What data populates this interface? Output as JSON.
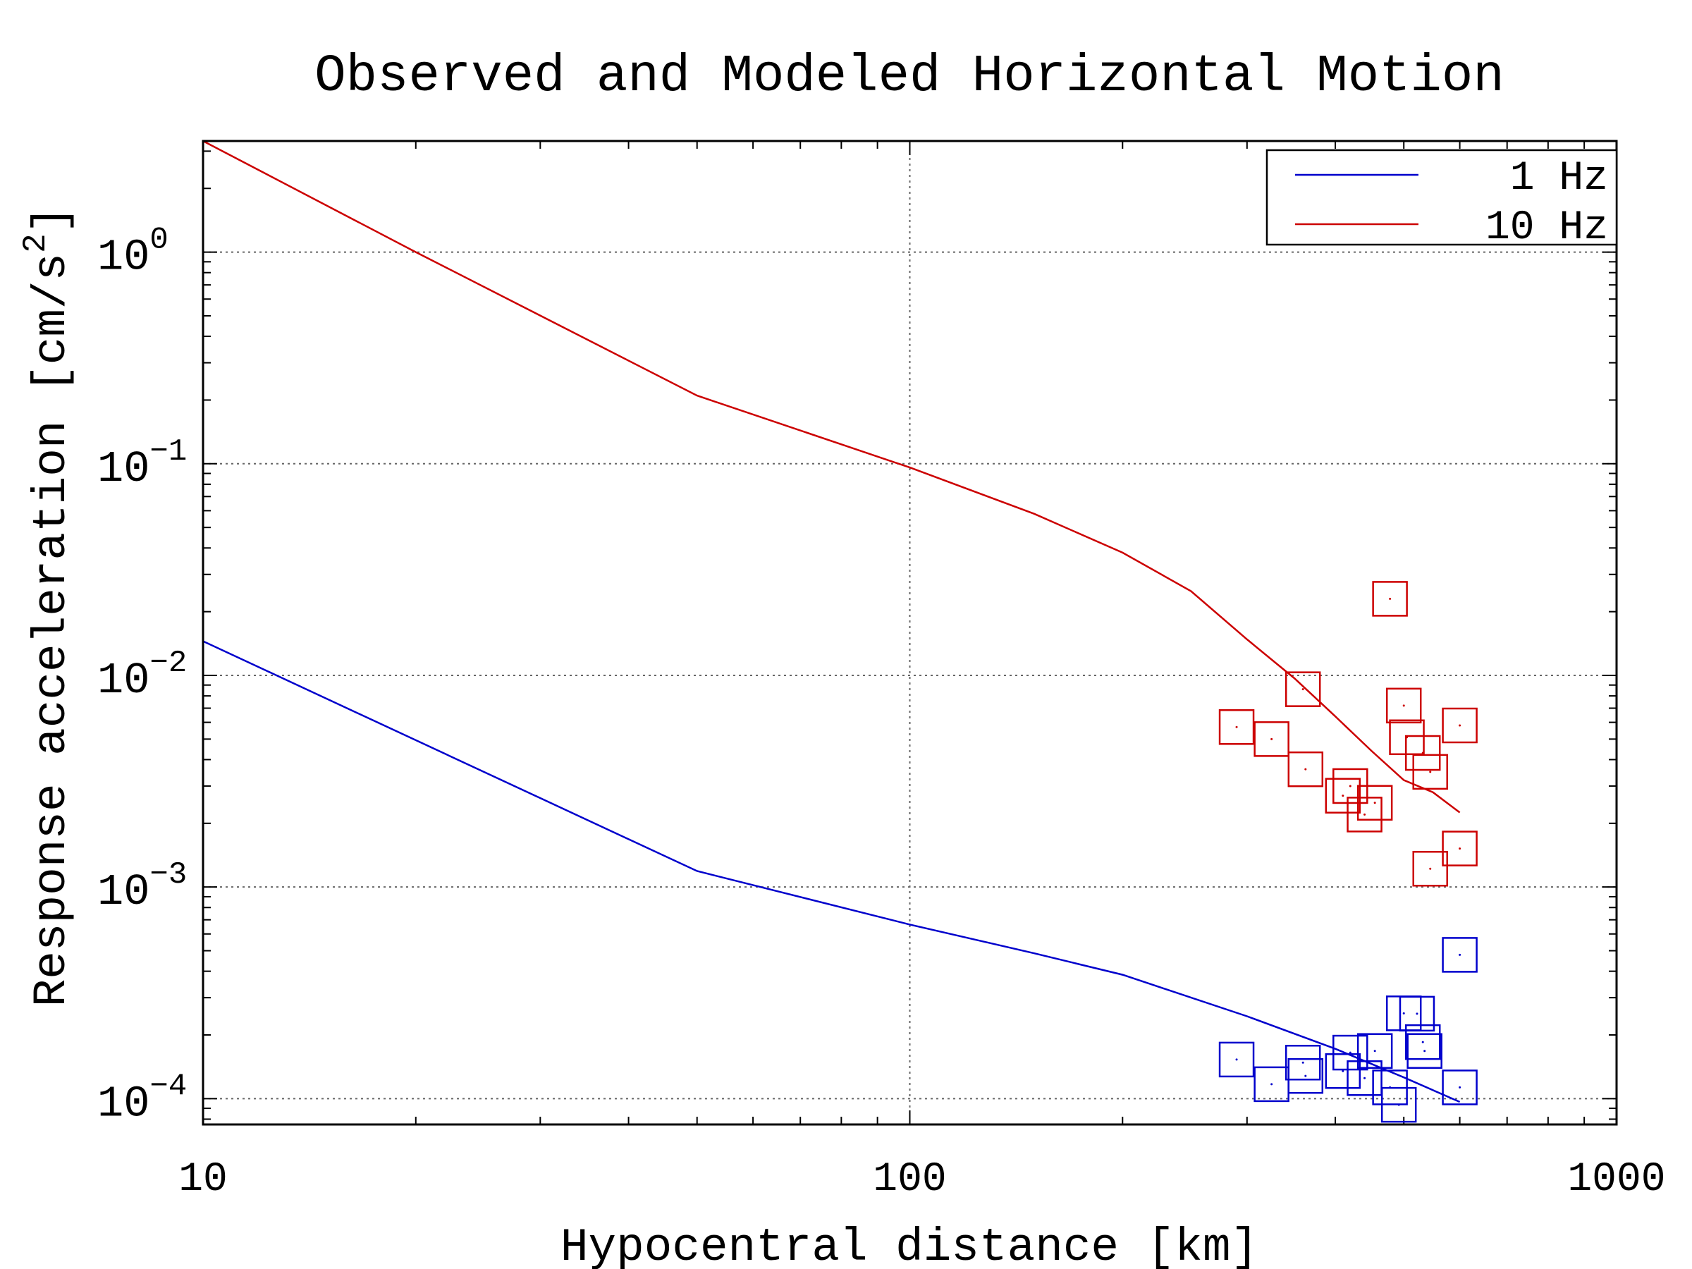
{
  "chart_data": {
    "type": "line",
    "title": "Observed and Modeled Horizontal Motion",
    "xlabel": "Hypocentral distance [km]",
    "ylabel": {
      "text": "Response acceleration [cm/s",
      "superscript": "2",
      "suffix": "]"
    },
    "x_scale": "log",
    "y_scale": "log",
    "xlim": [
      10,
      1000
    ],
    "ylim": [
      7.55e-05,
      3.35
    ],
    "grid": true,
    "legend_position": "top-right",
    "x_ticks": [
      {
        "value": 10,
        "label": "10"
      },
      {
        "value": 100,
        "label": "100"
      },
      {
        "value": 1000,
        "label": "1000"
      }
    ],
    "y_ticks": [
      {
        "value": 0.0001,
        "base": "10",
        "exp": "−4"
      },
      {
        "value": 0.001,
        "base": "10",
        "exp": "−3"
      },
      {
        "value": 0.01,
        "base": "10",
        "exp": "−2"
      },
      {
        "value": 0.1,
        "base": "10",
        "exp": "−1"
      },
      {
        "value": 1,
        "base": "10",
        "exp": "0"
      }
    ],
    "series": [
      {
        "name": "1 Hz",
        "color": "#0000cc",
        "kind": "line",
        "x": [
          10,
          50,
          100,
          150,
          200,
          300,
          400,
          500,
          600
        ],
        "y": [
          0.0145,
          0.00119,
          0.000665,
          0.000486,
          0.000385,
          0.000245,
          0.000172,
          0.000126,
          9.65e-05
        ]
      },
      {
        "name": "10 Hz",
        "color": "#cc0000",
        "kind": "line",
        "x": [
          10,
          20,
          50,
          100,
          150,
          200,
          250,
          300,
          350,
          400,
          450,
          500,
          550,
          600
        ],
        "y": [
          3.35,
          1.0,
          0.21,
          0.096,
          0.058,
          0.038,
          0.025,
          0.0148,
          0.0097,
          0.0064,
          0.0044,
          0.0032,
          0.0028,
          0.00225
        ]
      }
    ],
    "observations": [
      {
        "color": "#0000cc",
        "points": [
          {
            "x": 290,
            "y": 0.000153
          },
          {
            "x": 325,
            "y": 0.000117
          },
          {
            "x": 360,
            "y": 0.000148
          },
          {
            "x": 363,
            "y": 0.000128
          },
          {
            "x": 410,
            "y": 0.000135
          },
          {
            "x": 420,
            "y": 0.000165
          },
          {
            "x": 440,
            "y": 0.000125
          },
          {
            "x": 455,
            "y": 0.000168
          },
          {
            "x": 478,
            "y": 0.000113
          },
          {
            "x": 492,
            "y": 9.35e-05
          },
          {
            "x": 500,
            "y": 0.000253
          },
          {
            "x": 522,
            "y": 0.000252
          },
          {
            "x": 532,
            "y": 0.000185
          },
          {
            "x": 535,
            "y": 0.000168
          },
          {
            "x": 600,
            "y": 0.000113
          },
          {
            "x": 600,
            "y": 0.000478
          }
        ]
      },
      {
        "color": "#cc0000",
        "points": [
          {
            "x": 290,
            "y": 0.0057
          },
          {
            "x": 325,
            "y": 0.005
          },
          {
            "x": 360,
            "y": 0.0086
          },
          {
            "x": 363,
            "y": 0.0036
          },
          {
            "x": 410,
            "y": 0.0027
          },
          {
            "x": 420,
            "y": 0.003
          },
          {
            "x": 440,
            "y": 0.0022
          },
          {
            "x": 455,
            "y": 0.0025
          },
          {
            "x": 478,
            "y": 0.023
          },
          {
            "x": 500,
            "y": 0.0072
          },
          {
            "x": 505,
            "y": 0.0051
          },
          {
            "x": 532,
            "y": 0.0043
          },
          {
            "x": 545,
            "y": 0.0035
          },
          {
            "x": 545,
            "y": 0.00122
          },
          {
            "x": 600,
            "y": 0.0058
          },
          {
            "x": 600,
            "y": 0.00152
          }
        ]
      }
    ]
  }
}
